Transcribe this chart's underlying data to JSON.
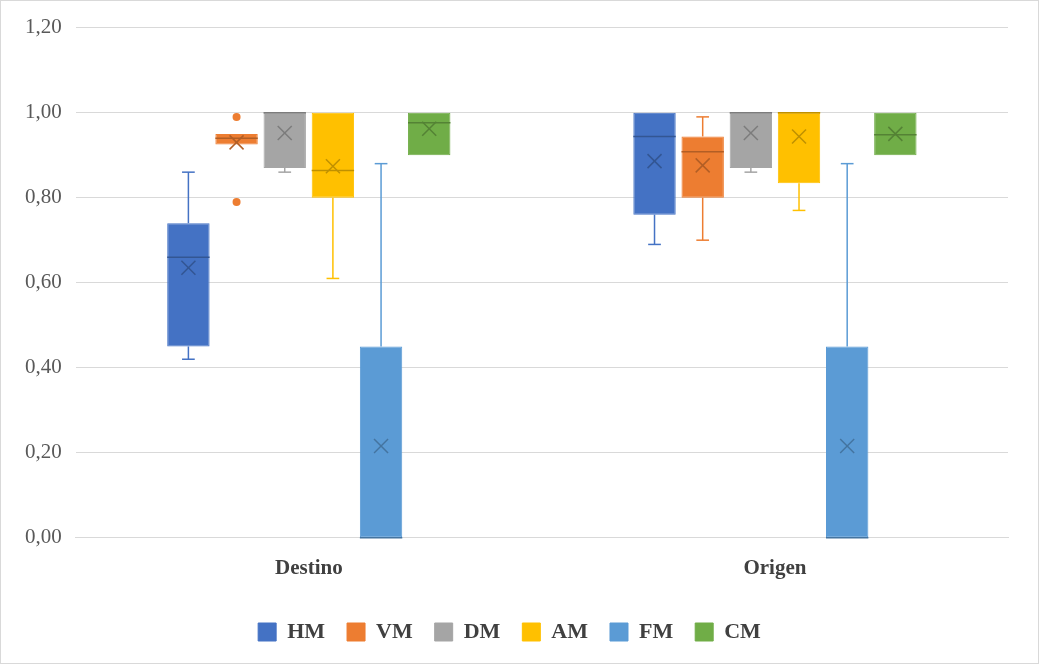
{
  "chart_data": {
    "type": "box",
    "categories": [
      "Destino",
      "Origen"
    ],
    "ylim": [
      0,
      1.2
    ],
    "yticks": [
      {
        "value": 0,
        "label": "0,00"
      },
      {
        "value": 0.2,
        "label": "0,20"
      },
      {
        "value": 0.4,
        "label": "0,40"
      },
      {
        "value": 0.6,
        "label": "0,60"
      },
      {
        "value": 0.8,
        "label": "0,80"
      },
      {
        "value": 1,
        "label": "1,00"
      },
      {
        "value": 1.2,
        "label": "1,20"
      }
    ],
    "grid": "y",
    "legend": "bottom",
    "series": [
      {
        "name": "HM",
        "color": "#4472c4",
        "boxes": [
          {
            "low": 0.42,
            "q1": 0.45,
            "median": 0.66,
            "q3": 0.74,
            "high": 0.86,
            "mean": 0.635
          },
          {
            "low": 0.69,
            "q1": 0.76,
            "median": 0.944,
            "q3": 1.0,
            "high": 1.0,
            "mean": 0.886
          }
        ]
      },
      {
        "name": "VM",
        "color": "#ed7d31",
        "boxes": [
          {
            "low": 0.925,
            "q1": 0.925,
            "median": 0.94,
            "q3": 0.95,
            "high": 0.95,
            "mean": 0.93,
            "outliers": [
              0.99,
              0.79
            ]
          },
          {
            "low": 0.7,
            "q1": 0.8,
            "median": 0.908,
            "q3": 0.944,
            "high": 0.99,
            "mean": 0.876
          }
        ]
      },
      {
        "name": "DM",
        "color": "#a5a5a5",
        "boxes": [
          {
            "low": 0.86,
            "q1": 0.87,
            "median": 1.0,
            "q3": 1.0,
            "high": 1.0,
            "mean": 0.952
          },
          {
            "low": 0.86,
            "q1": 0.87,
            "median": 1.0,
            "q3": 1.0,
            "high": 1.0,
            "mean": 0.952
          }
        ]
      },
      {
        "name": "AM",
        "color": "#ffc000",
        "boxes": [
          {
            "low": 0.61,
            "q1": 0.8,
            "median": 0.864,
            "q3": 1.0,
            "high": 1.0,
            "mean": 0.874
          },
          {
            "low": 0.77,
            "q1": 0.834,
            "median": 1.0,
            "q3": 1.0,
            "high": 1.0,
            "mean": 0.944
          }
        ]
      },
      {
        "name": "FM",
        "color": "#5b9bd5",
        "boxes": [
          {
            "low": 0,
            "q1": 0,
            "median": 0,
            "q3": 0.45,
            "high": 0.88,
            "mean": 0.216
          },
          {
            "low": 0,
            "q1": 0,
            "median": 0,
            "q3": 0.45,
            "high": 0.88,
            "mean": 0.216
          }
        ]
      },
      {
        "name": "CM",
        "color": "#70ad47",
        "boxes": [
          {
            "low": 0.9,
            "q1": 0.9,
            "median": 0.976,
            "q3": 1.0,
            "high": 1.0,
            "mean": 0.962
          },
          {
            "low": 0.9,
            "q1": 0.9,
            "median": 0.948,
            "q3": 1.0,
            "high": 1.0,
            "mean": 0.95
          }
        ]
      }
    ]
  }
}
